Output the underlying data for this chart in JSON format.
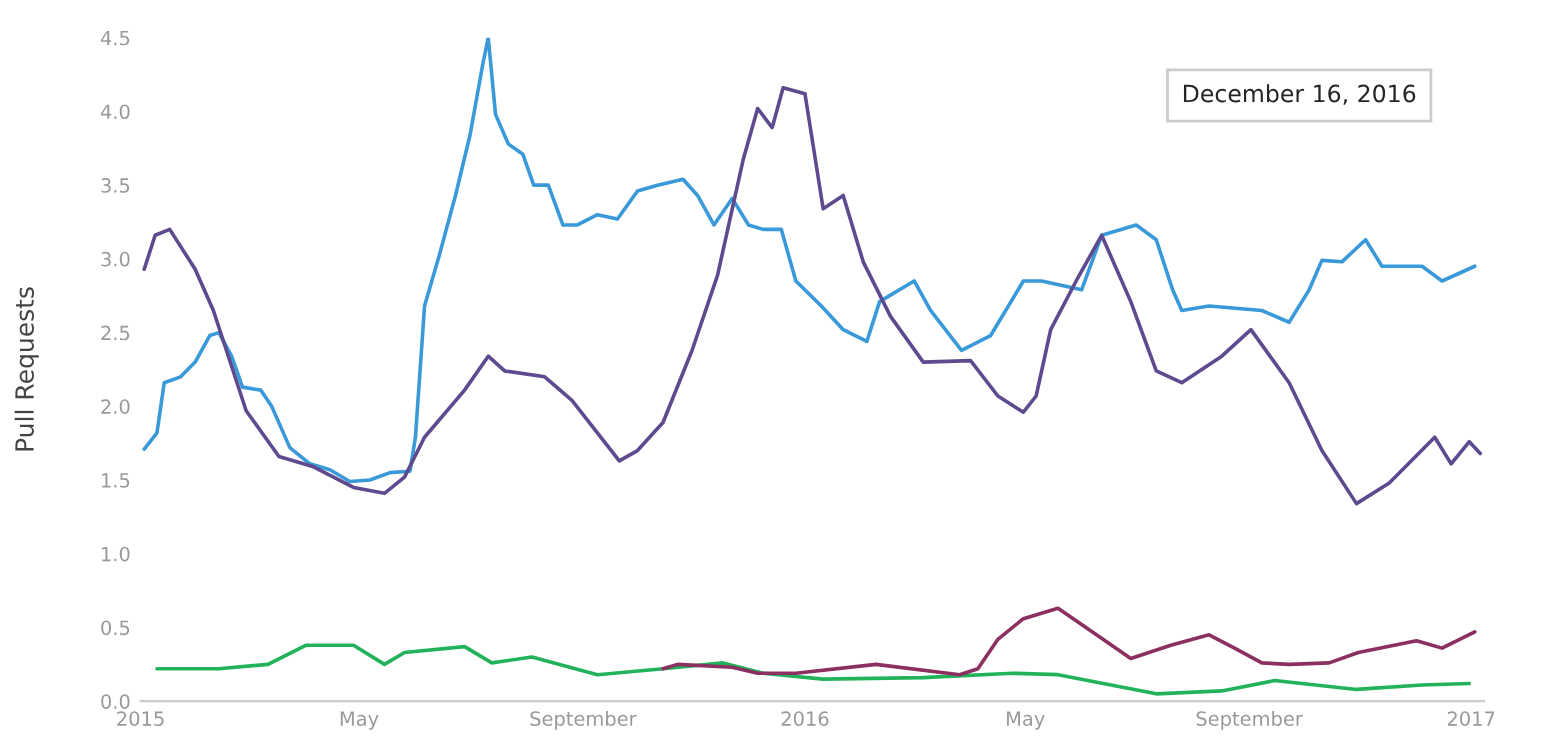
{
  "chart_data": {
    "type": "line",
    "ylabel": "Pull Requests",
    "annotations": [
      "December 16, 2016"
    ],
    "xlim": [
      "2015-01-01",
      "2017-01-08"
    ],
    "ylim": [
      0,
      4.5
    ],
    "xticks": [
      {
        "value": "2015-01-01",
        "label": "2015"
      },
      {
        "value": "2015-05-01",
        "label": "May"
      },
      {
        "value": "2015-09-01",
        "label": "September"
      },
      {
        "value": "2016-01-01",
        "label": "2016"
      },
      {
        "value": "2016-05-01",
        "label": "May"
      },
      {
        "value": "2016-09-01",
        "label": "September"
      },
      {
        "value": "2017-01-01",
        "label": "2017"
      }
    ],
    "yticks": [
      {
        "value": 0,
        "label": "0.0"
      },
      {
        "value": 0.5,
        "label": "0.5"
      },
      {
        "value": 1,
        "label": "1.0"
      },
      {
        "value": 1.5,
        "label": "1.5"
      },
      {
        "value": 2,
        "label": "2.0"
      },
      {
        "value": 2.5,
        "label": "2.5"
      },
      {
        "value": 3,
        "label": "3.0"
      },
      {
        "value": 3.5,
        "label": "3.5"
      },
      {
        "value": 4,
        "label": "4.0"
      },
      {
        "value": 4.5,
        "label": "4.5"
      }
    ],
    "grid": false,
    "marker": "none",
    "line_style": "solid",
    "series": [
      {
        "color": "#3a9ad9",
        "x": [
          "2015-01-03",
          "2015-01-10",
          "2015-01-14",
          "2015-01-23",
          "2015-01-31",
          "2015-02-08",
          "2015-02-13",
          "2015-02-20",
          "2015-02-26",
          "2015-03-08",
          "2015-03-14",
          "2015-03-24",
          "2015-04-04",
          "2015-04-15",
          "2015-04-26",
          "2015-05-07",
          "2015-05-18",
          "2015-05-29",
          "2015-06-01",
          "2015-06-06",
          "2015-06-14",
          "2015-06-23",
          "2015-07-01",
          "2015-07-08",
          "2015-07-11",
          "2015-07-15",
          "2015-07-22",
          "2015-07-30",
          "2015-08-05",
          "2015-08-13",
          "2015-08-21",
          "2015-08-29",
          "2015-09-09",
          "2015-09-20",
          "2015-10-01",
          "2015-10-12",
          "2015-10-26",
          "2015-11-03",
          "2015-11-12",
          "2015-11-22",
          "2015-12-01",
          "2015-12-09",
          "2015-12-19",
          "2015-12-27",
          "2016-01-10",
          "2016-01-22",
          "2016-02-04",
          "2016-02-11",
          "2016-03-01",
          "2016-03-10",
          "2016-03-27",
          "2016-04-12",
          "2016-04-30",
          "2016-05-10",
          "2016-06-01",
          "2016-06-12",
          "2016-07-01",
          "2016-07-12",
          "2016-07-21",
          "2016-07-26",
          "2016-08-10",
          "2016-09-08",
          "2016-09-23",
          "2016-10-04",
          "2016-10-11",
          "2016-10-22",
          "2016-11-04",
          "2016-11-13",
          "2016-12-05",
          "2016-12-16",
          "2017-01-03"
        ],
        "values": [
          1.71,
          1.82,
          2.16,
          2.2,
          2.3,
          2.48,
          2.5,
          2.34,
          2.13,
          2.11,
          2.0,
          1.72,
          1.61,
          1.57,
          1.49,
          1.5,
          1.55,
          1.56,
          1.79,
          2.68,
          3.02,
          3.43,
          3.84,
          4.32,
          4.5,
          3.98,
          3.78,
          3.71,
          3.5,
          3.5,
          3.23,
          3.23,
          3.3,
          3.27,
          3.46,
          3.5,
          3.54,
          3.43,
          3.23,
          3.41,
          3.23,
          3.2,
          3.2,
          2.85,
          2.68,
          2.52,
          2.44,
          2.71,
          2.85,
          2.65,
          2.38,
          2.48,
          2.85,
          2.85,
          2.79,
          3.16,
          3.23,
          3.13,
          2.79,
          2.65,
          2.68,
          2.65,
          2.57,
          2.79,
          2.99,
          2.98,
          3.13,
          2.95,
          2.95,
          2.85,
          2.95
        ]
      },
      {
        "color": "#5e4a8e",
        "x": [
          "2015-01-03",
          "2015-01-09",
          "2015-01-17",
          "2015-01-31",
          "2015-02-10",
          "2015-02-28",
          "2015-03-18",
          "2015-04-06",
          "2015-04-28",
          "2015-05-15",
          "2015-05-26",
          "2015-06-06",
          "2015-06-28",
          "2015-07-11",
          "2015-07-20",
          "2015-08-11",
          "2015-08-26",
          "2015-09-21",
          "2015-10-01",
          "2015-10-15",
          "2015-10-31",
          "2015-11-14",
          "2015-11-28",
          "2015-12-06",
          "2015-12-14",
          "2015-12-20",
          "2016-01-01",
          "2016-01-11",
          "2016-01-22",
          "2016-02-02",
          "2016-02-17",
          "2016-03-06",
          "2016-04-01",
          "2016-04-16",
          "2016-04-30",
          "2016-05-07",
          "2016-05-15",
          "2016-05-29",
          "2016-06-12",
          "2016-06-28",
          "2016-07-12",
          "2016-07-26",
          "2016-08-17",
          "2016-09-02",
          "2016-09-23",
          "2016-10-11",
          "2016-10-30",
          "2016-11-17",
          "2016-12-12",
          "2016-12-21",
          "2016-12-31",
          "2017-01-06"
        ],
        "values": [
          2.93,
          3.16,
          3.2,
          2.93,
          2.65,
          1.97,
          1.66,
          1.59,
          1.45,
          1.41,
          1.52,
          1.79,
          2.11,
          2.34,
          2.24,
          2.2,
          2.04,
          1.63,
          1.7,
          1.89,
          2.38,
          2.89,
          3.67,
          4.02,
          3.89,
          4.16,
          4.12,
          3.34,
          3.43,
          2.98,
          2.61,
          2.3,
          2.31,
          2.07,
          1.96,
          2.07,
          2.52,
          2.85,
          3.16,
          2.71,
          2.24,
          2.16,
          2.34,
          2.52,
          2.16,
          1.7,
          1.34,
          1.48,
          1.79,
          1.61,
          1.76,
          1.68
        ]
      },
      {
        "color": "#22b35a",
        "x": [
          "2015-01-10",
          "2015-02-13",
          "2015-03-12",
          "2015-04-02",
          "2015-04-28",
          "2015-05-15",
          "2015-05-26",
          "2015-06-28",
          "2015-07-13",
          "2015-08-04",
          "2015-09-09",
          "2015-10-15",
          "2015-11-17",
          "2015-12-09",
          "2016-01-11",
          "2016-03-06",
          "2016-04-24",
          "2016-05-19",
          "2016-07-12",
          "2016-08-17",
          "2016-09-15",
          "2016-10-30",
          "2016-12-05",
          "2016-12-31"
        ],
        "values": [
          0.22,
          0.22,
          0.25,
          0.38,
          0.38,
          0.25,
          0.33,
          0.37,
          0.26,
          0.3,
          0.18,
          0.22,
          0.26,
          0.19,
          0.15,
          0.16,
          0.19,
          0.18,
          0.05,
          0.07,
          0.14,
          0.08,
          0.11,
          0.12
        ]
      },
      {
        "color": "#8b3060",
        "x": [
          "2015-10-15",
          "2015-10-23",
          "2015-11-22",
          "2015-12-06",
          "2015-12-27",
          "2016-02-09",
          "2016-03-26",
          "2016-04-05",
          "2016-04-16",
          "2016-04-30",
          "2016-05-19",
          "2016-06-01",
          "2016-06-28",
          "2016-07-20",
          "2016-08-10",
          "2016-08-24",
          "2016-09-08",
          "2016-09-23",
          "2016-10-15",
          "2016-10-31",
          "2016-12-02",
          "2016-12-16",
          "2017-01-03"
        ],
        "values": [
          0.22,
          0.25,
          0.23,
          0.19,
          0.19,
          0.25,
          0.18,
          0.22,
          0.42,
          0.56,
          0.63,
          0.52,
          0.29,
          0.38,
          0.45,
          0.36,
          0.26,
          0.25,
          0.26,
          0.33,
          0.41,
          0.36,
          0.47
        ]
      }
    ]
  }
}
